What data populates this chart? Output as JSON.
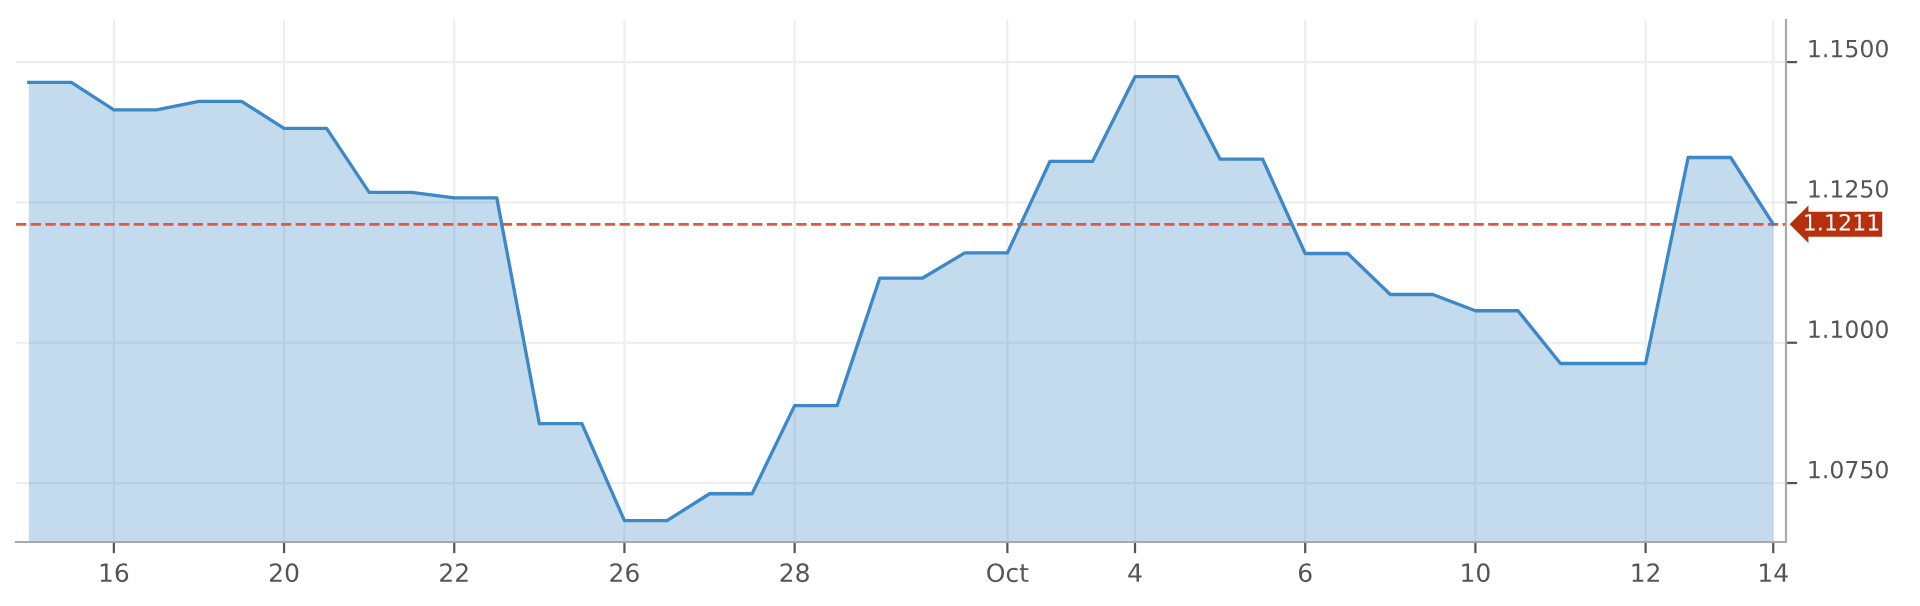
{
  "chart_data": {
    "type": "area",
    "categories": [
      null,
      null,
      "16",
      null,
      null,
      null,
      "20",
      null,
      null,
      null,
      "22",
      null,
      null,
      null,
      "26",
      null,
      null,
      null,
      "28",
      null,
      null,
      null,
      null,
      "Oct",
      null,
      null,
      "4",
      null,
      null,
      null,
      "6",
      null,
      null,
      null,
      "10",
      null,
      null,
      null,
      "12",
      null,
      null,
      "14"
    ],
    "series": [
      {
        "color": "#3d88c6",
        "values": [
          1.1464,
          1.1464,
          1.1415,
          1.1415,
          1.143,
          1.143,
          1.1382,
          1.1382,
          1.1268,
          1.1268,
          1.1258,
          1.1258,
          1.0856,
          1.0856,
          1.0683,
          1.0683,
          1.0731,
          1.0731,
          1.0888,
          1.0888,
          1.1115,
          1.1115,
          1.116,
          1.116,
          1.1323,
          1.1323,
          1.1474,
          1.1474,
          1.1327,
          1.1327,
          1.1159,
          1.1159,
          1.1086,
          1.1086,
          1.1057,
          1.1057,
          1.0963,
          1.0963,
          1.0963,
          1.133,
          1.133,
          1.1211
        ]
      }
    ],
    "ylim": [
      1.0645,
      1.1575
    ],
    "yticks": [
      {
        "value": 1.075,
        "label": "1.0750"
      },
      {
        "value": 1.1,
        "label": "1.1000"
      },
      {
        "value": 1.125,
        "label": "1.1250"
      },
      {
        "value": 1.15,
        "label": "1.1500"
      }
    ],
    "ref_lines": [
      {
        "axis": "y",
        "value": 1.1211,
        "label": "1.1211",
        "color": "#e8553e",
        "line_style": "dashed"
      }
    ],
    "grid": true,
    "marker": "none",
    "line_style": "solid"
  }
}
